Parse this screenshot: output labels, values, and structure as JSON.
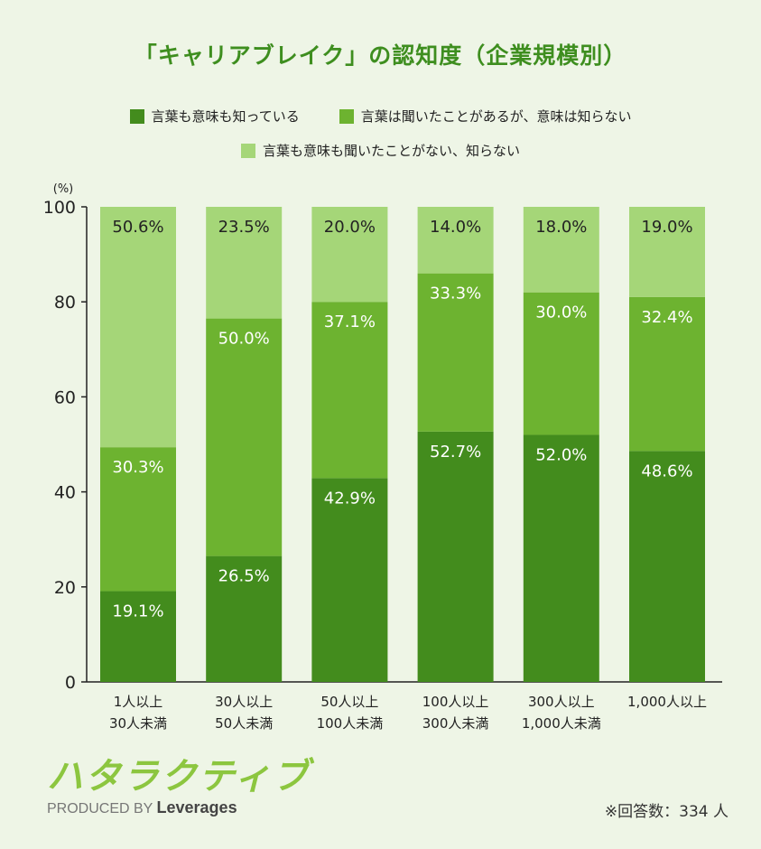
{
  "page": {
    "title": "「キャリアブレイク」の認知度（企業規模別）",
    "unit_label": "(%)",
    "note": "※回答数：334 人",
    "logo": {
      "name": "ハタラクティブ",
      "produced_by": "PRODUCED BY",
      "brand": "Leverages"
    }
  },
  "colors": {
    "dark": "#438c1d",
    "mid": "#6db330",
    "light": "#a5d678",
    "title": "#3e8e1f",
    "background": "#eef5e6"
  },
  "chart_data": {
    "type": "bar",
    "stacked": true,
    "title": "「キャリアブレイク」の認知度（企業規模別）",
    "ylabel": "(%)",
    "ylim": [
      0,
      100
    ],
    "yticks": [
      0,
      20,
      40,
      60,
      80,
      100
    ],
    "grid": false,
    "legend_position": "top",
    "categories": [
      [
        "1人以上",
        "30人未満"
      ],
      [
        "30人以上",
        "50人未満"
      ],
      [
        "50人以上",
        "100人未満"
      ],
      [
        "100人以上",
        "300人未満"
      ],
      [
        "300人以上",
        "1,000人未満"
      ],
      [
        "1,000人以上"
      ]
    ],
    "series": [
      {
        "name": "言葉も意味も知っている",
        "color": "#438c1d",
        "values": [
          19.1,
          26.5,
          42.9,
          52.7,
          52.0,
          48.6
        ]
      },
      {
        "name": "言葉は聞いたことがあるが、意味は知らない",
        "color": "#6db330",
        "values": [
          30.3,
          50.0,
          37.1,
          33.3,
          30.0,
          32.4
        ]
      },
      {
        "name": "言葉も意味も聞いたことがない、知らない",
        "color": "#a5d678",
        "values": [
          50.6,
          23.5,
          20.0,
          14.0,
          18.0,
          19.0
        ]
      }
    ],
    "value_labels": [
      [
        "19.1%",
        "26.5%",
        "42.9%",
        "52.7%",
        "52.0%",
        "48.6%"
      ],
      [
        "30.3%",
        "50.0%",
        "37.1%",
        "33.3%",
        "30.0%",
        "32.4%"
      ],
      [
        "50.6%",
        "23.5%",
        "20.0%",
        "14.0%",
        "18.0%",
        "19.0%"
      ]
    ]
  }
}
